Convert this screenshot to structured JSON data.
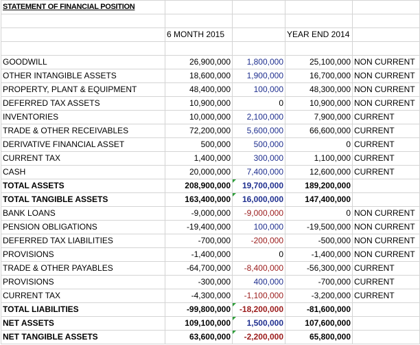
{
  "title": "STATEMENT OF FINANCIAL POSITION",
  "headers": {
    "col_2015": "6 MONTH 2015",
    "col_2014": "YEAR END 2014"
  },
  "colors": {
    "positive_change": "#1f2f8f",
    "negative_change": "#9a1a1a",
    "formula_marker": "#2e9e3a"
  },
  "rows": [
    {
      "label": "GOODWILL",
      "v2015": "26,900,000",
      "change": "1,800,000",
      "v2014": "25,100,000",
      "class": "NON CURRENT"
    },
    {
      "label": "OTHER INTANGIBLE ASSETS",
      "v2015": "18,600,000",
      "change": "1,900,000",
      "v2014": "16,700,000",
      "class": "NON CURRENT"
    },
    {
      "label": "PROPERTY, PLANT & EQUIPMENT",
      "v2015": "48,400,000",
      "change": "100,000",
      "v2014": "48,300,000",
      "class": "NON CURRENT"
    },
    {
      "label": "DEFERRED TAX ASSETS",
      "v2015": "10,900,000",
      "change": "0",
      "v2014": "10,900,000",
      "class": "NON CURRENT"
    },
    {
      "label": "INVENTORIES",
      "v2015": "10,000,000",
      "change": "2,100,000",
      "v2014": "7,900,000",
      "class": "CURRENT"
    },
    {
      "label": "TRADE & OTHER RECEIVABLES",
      "v2015": "72,200,000",
      "change": "5,600,000",
      "v2014": "66,600,000",
      "class": "CURRENT"
    },
    {
      "label": "DERIVATIVE FINANCIAL ASSET",
      "v2015": "500,000",
      "change": "500,000",
      "v2014": "0",
      "class": "CURRENT"
    },
    {
      "label": "CURRENT TAX",
      "v2015": "1,400,000",
      "change": "300,000",
      "v2014": "1,100,000",
      "class": "CURRENT"
    },
    {
      "label": "CASH",
      "v2015": "20,000,000",
      "change": "7,400,000",
      "v2014": "12,600,000",
      "class": "CURRENT"
    },
    {
      "label": "TOTAL ASSETS",
      "v2015": "208,900,000",
      "change": "19,700,000",
      "v2014": "189,200,000",
      "class": "",
      "bold": true
    },
    {
      "label": "TOTAL TANGIBLE ASSETS",
      "v2015": "163,400,000",
      "change": "16,000,000",
      "v2014": "147,400,000",
      "class": "",
      "bold": true
    },
    {
      "label": "BANK LOANS",
      "v2015": "-9,000,000",
      "change": "-9,000,000",
      "v2014": "0",
      "class": "NON CURRENT"
    },
    {
      "label": "PENSION OBLIGATIONS",
      "v2015": "-19,400,000",
      "change": "100,000",
      "v2014": "-19,500,000",
      "class": "NON CURRENT"
    },
    {
      "label": "DEFERRED TAX LIABILITIES",
      "v2015": "-700,000",
      "change": "-200,000",
      "v2014": "-500,000",
      "class": "NON CURRENT"
    },
    {
      "label": "PROVISIONS",
      "v2015": "-1,400,000",
      "change": "0",
      "v2014": "-1,400,000",
      "class": "NON CURRENT"
    },
    {
      "label": "TRADE & OTHER PAYABLES",
      "v2015": "-64,700,000",
      "change": "-8,400,000",
      "v2014": "-56,300,000",
      "class": "CURRENT"
    },
    {
      "label": "PROVISIONS",
      "v2015": "-300,000",
      "change": "400,000",
      "v2014": "-700,000",
      "class": "CURRENT"
    },
    {
      "label": "CURRENT TAX",
      "v2015": "-4,300,000",
      "change": "-1,100,000",
      "v2014": "-3,200,000",
      "class": "CURRENT"
    },
    {
      "label": "TOTAL LIABILITIES",
      "v2015": "-99,800,000",
      "change": "-18,200,000",
      "v2014": "-81,600,000",
      "class": "",
      "bold": true
    },
    {
      "label": "NET ASSETS",
      "v2015": "109,100,000",
      "change": "1,500,000",
      "v2014": "107,600,000",
      "class": "",
      "bold": true
    },
    {
      "label": "NET TANGIBLE ASSETS",
      "v2015": "63,600,000",
      "change": "-2,200,000",
      "v2014": "65,800,000",
      "class": "",
      "bold": true
    }
  ]
}
